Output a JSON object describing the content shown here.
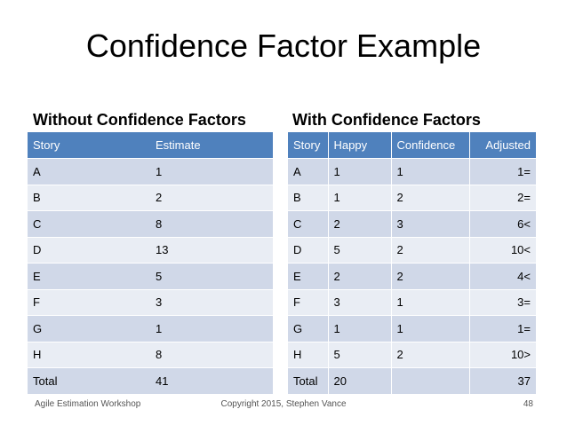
{
  "title": "Confidence Factor Example",
  "left_table": {
    "heading": "Without Confidence Factors",
    "columns": [
      "Story",
      "Estimate"
    ],
    "rows": [
      [
        "A",
        "1"
      ],
      [
        "B",
        "2"
      ],
      [
        "C",
        "8"
      ],
      [
        "D",
        "13"
      ],
      [
        "E",
        "5"
      ],
      [
        "F",
        "3"
      ],
      [
        "G",
        "1"
      ],
      [
        "H",
        "8"
      ],
      [
        "Total",
        "41"
      ]
    ]
  },
  "right_table": {
    "heading": "With Confidence Factors",
    "columns": [
      "Story",
      "Happy",
      "Confidence",
      "Adjusted"
    ],
    "rows": [
      [
        "A",
        "1",
        "1",
        "1="
      ],
      [
        "B",
        "1",
        "2",
        "2="
      ],
      [
        "C",
        "2",
        "3",
        "6<"
      ],
      [
        "D",
        "5",
        "2",
        "10<"
      ],
      [
        "E",
        "2",
        "2",
        "4<"
      ],
      [
        "F",
        "3",
        "1",
        "3="
      ],
      [
        "G",
        "1",
        "1",
        "1="
      ],
      [
        "H",
        "5",
        "2",
        "10>"
      ],
      [
        "Total",
        "20",
        "",
        "37"
      ]
    ]
  },
  "footer": {
    "left": "Agile Estimation Workshop",
    "center": "Copyright 2015, Stephen Vance",
    "page_number": "48"
  },
  "colors": {
    "header_fill": "#4f81bd",
    "row_odd_fill": "#d0d8e8",
    "row_even_fill": "#e9edf4"
  }
}
